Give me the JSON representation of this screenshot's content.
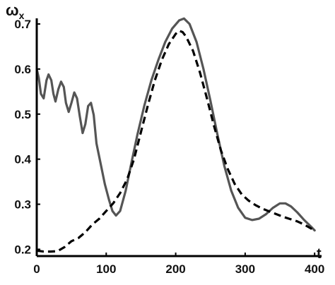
{
  "chart_data": {
    "type": "line",
    "ylabel_symbol": "ω",
    "ylabel_subscript": "x",
    "xlabel": "t",
    "xlim": [
      0,
      410
    ],
    "ylim": [
      0.185,
      0.725
    ],
    "x_ticks": [
      0,
      100,
      200,
      300,
      400
    ],
    "y_ticks": [
      0.2,
      0.3,
      0.4,
      0.5,
      0.6,
      0.7
    ],
    "grid": false,
    "series": [
      {
        "style": "solid",
        "color": "#555555",
        "points": [
          [
            0,
            0.6
          ],
          [
            3,
            0.58
          ],
          [
            6,
            0.545
          ],
          [
            10,
            0.535
          ],
          [
            14,
            0.575
          ],
          [
            17,
            0.588
          ],
          [
            21,
            0.575
          ],
          [
            24,
            0.545
          ],
          [
            27,
            0.528
          ],
          [
            31,
            0.555
          ],
          [
            35,
            0.572
          ],
          [
            39,
            0.56
          ],
          [
            42,
            0.525
          ],
          [
            46,
            0.505
          ],
          [
            50,
            0.525
          ],
          [
            54,
            0.548
          ],
          [
            58,
            0.535
          ],
          [
            62,
            0.495
          ],
          [
            66,
            0.458
          ],
          [
            70,
            0.478
          ],
          [
            74,
            0.518
          ],
          [
            78,
            0.525
          ],
          [
            82,
            0.498
          ],
          [
            86,
            0.435
          ],
          [
            92,
            0.39
          ],
          [
            98,
            0.345
          ],
          [
            104,
            0.31
          ],
          [
            109,
            0.285
          ],
          [
            114,
            0.275
          ],
          [
            120,
            0.285
          ],
          [
            128,
            0.33
          ],
          [
            136,
            0.39
          ],
          [
            145,
            0.455
          ],
          [
            155,
            0.52
          ],
          [
            165,
            0.575
          ],
          [
            175,
            0.62
          ],
          [
            185,
            0.66
          ],
          [
            195,
            0.69
          ],
          [
            205,
            0.708
          ],
          [
            212,
            0.712
          ],
          [
            220,
            0.7
          ],
          [
            230,
            0.66
          ],
          [
            240,
            0.6
          ],
          [
            250,
            0.53
          ],
          [
            260,
            0.455
          ],
          [
            270,
            0.385
          ],
          [
            280,
            0.33
          ],
          [
            290,
            0.292
          ],
          [
            300,
            0.27
          ],
          [
            310,
            0.265
          ],
          [
            320,
            0.268
          ],
          [
            330,
            0.278
          ],
          [
            340,
            0.292
          ],
          [
            350,
            0.302
          ],
          [
            358,
            0.302
          ],
          [
            366,
            0.295
          ],
          [
            375,
            0.282
          ],
          [
            385,
            0.265
          ],
          [
            395,
            0.25
          ],
          [
            400,
            0.242
          ]
        ]
      },
      {
        "style": "dashed",
        "color": "#000000",
        "points": [
          [
            0,
            0.197
          ],
          [
            10,
            0.195
          ],
          [
            20,
            0.195
          ],
          [
            30,
            0.196
          ],
          [
            40,
            0.205
          ],
          [
            50,
            0.218
          ],
          [
            60,
            0.225
          ],
          [
            70,
            0.238
          ],
          [
            80,
            0.255
          ],
          [
            90,
            0.268
          ],
          [
            100,
            0.285
          ],
          [
            110,
            0.302
          ],
          [
            120,
            0.325
          ],
          [
            130,
            0.355
          ],
          [
            140,
            0.4
          ],
          [
            150,
            0.46
          ],
          [
            160,
            0.52
          ],
          [
            170,
            0.575
          ],
          [
            180,
            0.62
          ],
          [
            190,
            0.655
          ],
          [
            200,
            0.678
          ],
          [
            205,
            0.685
          ],
          [
            210,
            0.682
          ],
          [
            215,
            0.672
          ],
          [
            225,
            0.64
          ],
          [
            235,
            0.592
          ],
          [
            245,
            0.535
          ],
          [
            255,
            0.475
          ],
          [
            265,
            0.42
          ],
          [
            275,
            0.378
          ],
          [
            285,
            0.345
          ],
          [
            295,
            0.322
          ],
          [
            305,
            0.308
          ],
          [
            315,
            0.298
          ],
          [
            325,
            0.29
          ],
          [
            335,
            0.284
          ],
          [
            345,
            0.278
          ],
          [
            355,
            0.272
          ],
          [
            365,
            0.267
          ],
          [
            375,
            0.262
          ],
          [
            385,
            0.255
          ],
          [
            395,
            0.246
          ],
          [
            400,
            0.24
          ]
        ]
      }
    ]
  }
}
